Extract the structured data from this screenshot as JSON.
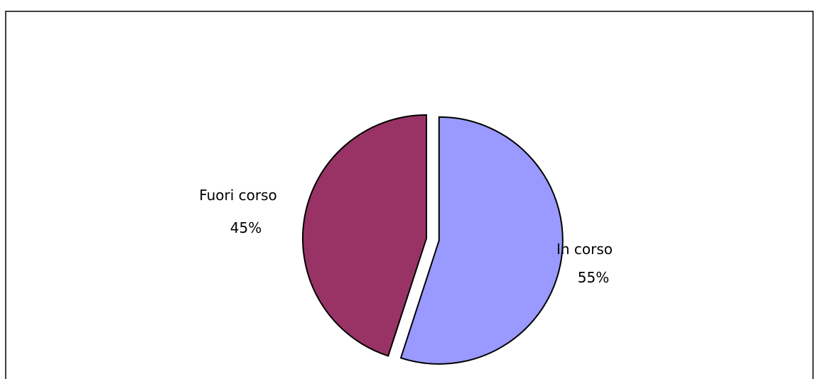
{
  "chart_data": {
    "type": "pie",
    "title": "",
    "slices": [
      {
        "label": "In corso",
        "value": 55,
        "value_label": "55%",
        "color": "#9999FF",
        "exploded": true
      },
      {
        "label": "Fuori corso",
        "value": 45,
        "value_label": "45%",
        "color": "#993366",
        "exploded": false
      }
    ],
    "legend": "none",
    "border_color": "#000000"
  }
}
